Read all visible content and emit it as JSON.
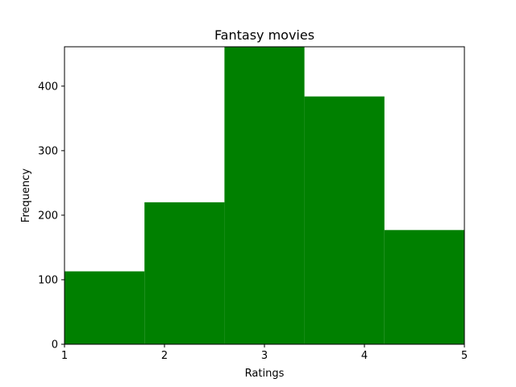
{
  "chart_data": {
    "type": "bar",
    "title": "Fantasy movies",
    "xlabel": "Ratings",
    "ylabel": "Frequency",
    "bins": [
      {
        "start": 1.0,
        "end": 1.8,
        "value": 113
      },
      {
        "start": 1.8,
        "end": 2.6,
        "value": 220
      },
      {
        "start": 2.6,
        "end": 3.4,
        "value": 461
      },
      {
        "start": 3.4,
        "end": 4.2,
        "value": 384
      },
      {
        "start": 4.2,
        "end": 5.0,
        "value": 177
      }
    ],
    "xlim": [
      1,
      5
    ],
    "ylim": [
      0,
      461
    ],
    "xticks": [
      1,
      2,
      3,
      4,
      5
    ],
    "yticks": [
      0,
      100,
      200,
      300,
      400
    ],
    "bar_color": "#008000",
    "grid": false
  }
}
